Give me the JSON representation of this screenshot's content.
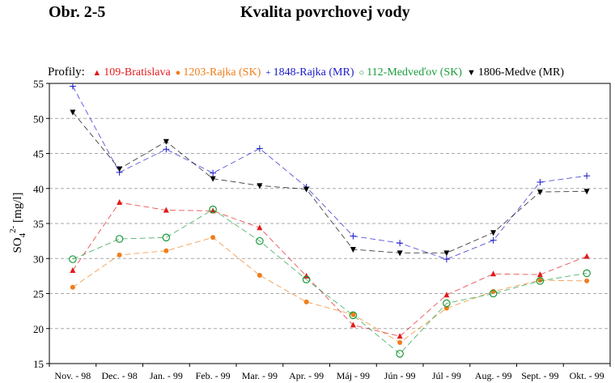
{
  "header": {
    "figure_label": "Obr. 2-5",
    "title": "Kvalita povrchovej vody"
  },
  "legend": {
    "lead": "Profily:"
  },
  "colors": {
    "bratislava": "#e31a1c",
    "rajka_sk": "#f07d1a",
    "rajka_mr": "#1a1aca",
    "medvedov_sk": "#1a9a3a",
    "medve_mr": "#000000",
    "grid": "#a8a8a8"
  },
  "chart_data": {
    "type": "line",
    "title": "",
    "ylabel": "SO4 2- [mg/l]",
    "ylabel_parts": {
      "base": "SO",
      "sub": "4",
      "sup": "2-",
      "unit": " [mg/l]"
    },
    "ylim": [
      15,
      55
    ],
    "yticks": [
      15,
      20,
      25,
      30,
      35,
      40,
      45,
      50,
      55
    ],
    "grid": "horizontal dashed",
    "legend_position": "top",
    "categories": [
      "Nov. - 98",
      "Dec. - 98",
      "Jan. - 99",
      "Feb. - 99",
      "Mar. - 99",
      "Apr. - 99",
      "Máj - 99",
      "Jún - 99",
      "Júl - 99",
      "Aug. - 99",
      "Sept. - 99",
      "Okt. - 99"
    ],
    "series": [
      {
        "name": "109-Bratislava",
        "marker": "triangle-up",
        "color_key": "bratislava",
        "symbol": "▲",
        "values": [
          28.3,
          38.0,
          36.9,
          36.8,
          34.4,
          27.5,
          20.5,
          18.9,
          24.8,
          27.8,
          27.7,
          30.3
        ]
      },
      {
        "name": "1203-Rajka (SK)",
        "marker": "dot",
        "color_key": "rajka_sk",
        "symbol": "●",
        "values": [
          25.9,
          30.5,
          31.1,
          33.0,
          27.6,
          23.8,
          22.0,
          18.0,
          22.9,
          25.3,
          26.9,
          26.8
        ]
      },
      {
        "name": "1848-Rajka (MR)",
        "marker": "plus",
        "color_key": "rajka_mr",
        "symbol": "+",
        "values": [
          54.6,
          42.3,
          45.6,
          42.2,
          45.7,
          40.2,
          33.2,
          32.2,
          29.9,
          32.6,
          40.9,
          41.8
        ]
      },
      {
        "name": "112-Medveďov (SK)",
        "marker": "circle-open",
        "color_key": "medvedov_sk",
        "symbol": "○",
        "values": [
          29.9,
          32.8,
          33.0,
          37.0,
          32.5,
          27.0,
          21.9,
          16.4,
          23.6,
          25.0,
          26.8,
          27.9
        ]
      },
      {
        "name": "1806-Medve (MR)",
        "marker": "triangle-down",
        "color_key": "medve_mr",
        "symbol": "▼",
        "values": [
          50.9,
          42.8,
          46.7,
          41.4,
          40.4,
          39.9,
          31.3,
          30.8,
          30.8,
          33.7,
          39.5,
          39.6
        ]
      }
    ]
  }
}
